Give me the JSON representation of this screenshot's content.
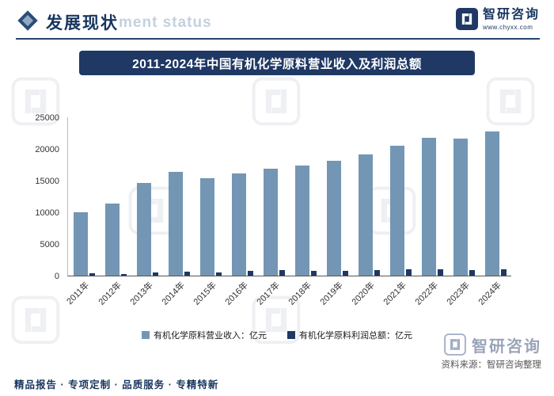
{
  "header": {
    "section_title": "发展现状",
    "bg_text": "ment status"
  },
  "brand": {
    "name": "智研咨询",
    "website": "www.chyxx.com"
  },
  "chart_title": "2011-2024年中国有机化学原料营业收入及利润总额",
  "chart_data": {
    "type": "bar",
    "title": "2011-2024年中国有机化学原料营业收入及利润总额",
    "categories": [
      "2011年",
      "2012年",
      "2013年",
      "2014年",
      "2015年",
      "2016年",
      "2017年",
      "2018年",
      "2019年",
      "2020年",
      "2021年",
      "2022年",
      "2023年",
      "2024年"
    ],
    "series": [
      {
        "name": "有机化学原料营业收入：亿元",
        "color": "#7396B4",
        "values": [
          10000,
          11400,
          14600,
          16400,
          15400,
          16100,
          16900,
          17400,
          18100,
          19100,
          20500,
          21800,
          21600,
          22700
        ]
      },
      {
        "name": "有机化学原料利润总额：亿元",
        "color": "#1F3864",
        "values": [
          400,
          250,
          550,
          600,
          500,
          800,
          850,
          750,
          800,
          850,
          1000,
          950,
          900,
          950
        ]
      }
    ],
    "ylim": [
      0,
      25000
    ],
    "yticks": [
      0,
      5000,
      10000,
      15000,
      20000,
      25000
    ],
    "grid": false,
    "legend_position": "bottom"
  },
  "source": {
    "brand": "智研咨询",
    "text": "资料来源：智研咨询整理"
  },
  "footer": {
    "text": "精品报告 · 专项定制 · 品质服务 · 专精特新"
  },
  "colors": {
    "navy": "#1F3864",
    "revenue_bar": "#7396B4",
    "profit_bar": "#1F3864",
    "bg_text_light": "#C3D1DF"
  }
}
